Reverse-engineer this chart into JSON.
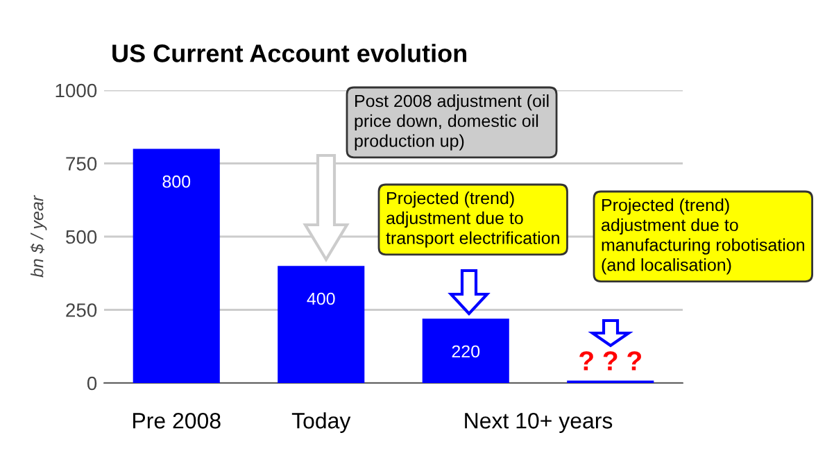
{
  "chart_data": {
    "type": "bar",
    "title": "US Current Account evolution",
    "ylabel": "bn $ / year",
    "categories": [
      "Pre 2008",
      "Today",
      "Next 10+ years",
      null
    ],
    "values": [
      800,
      400,
      220,
      8
    ],
    "value_labels": [
      "800",
      "400",
      "220",
      null
    ],
    "color": "#0000ff",
    "ylim": [
      0,
      1000
    ],
    "yticks": [
      0,
      250,
      500,
      750,
      1000
    ],
    "grid": "y",
    "annotations": [
      "Post 2008 adjustment (oil\nprice down, domestic oil\nproduction up)",
      "Projected (trend)\nadjustment due to\ntransport electrification",
      "Projected (trend)\nadjustment due to\nmanufacturing robotisation\n(and localisation)",
      "? ? ?"
    ]
  }
}
